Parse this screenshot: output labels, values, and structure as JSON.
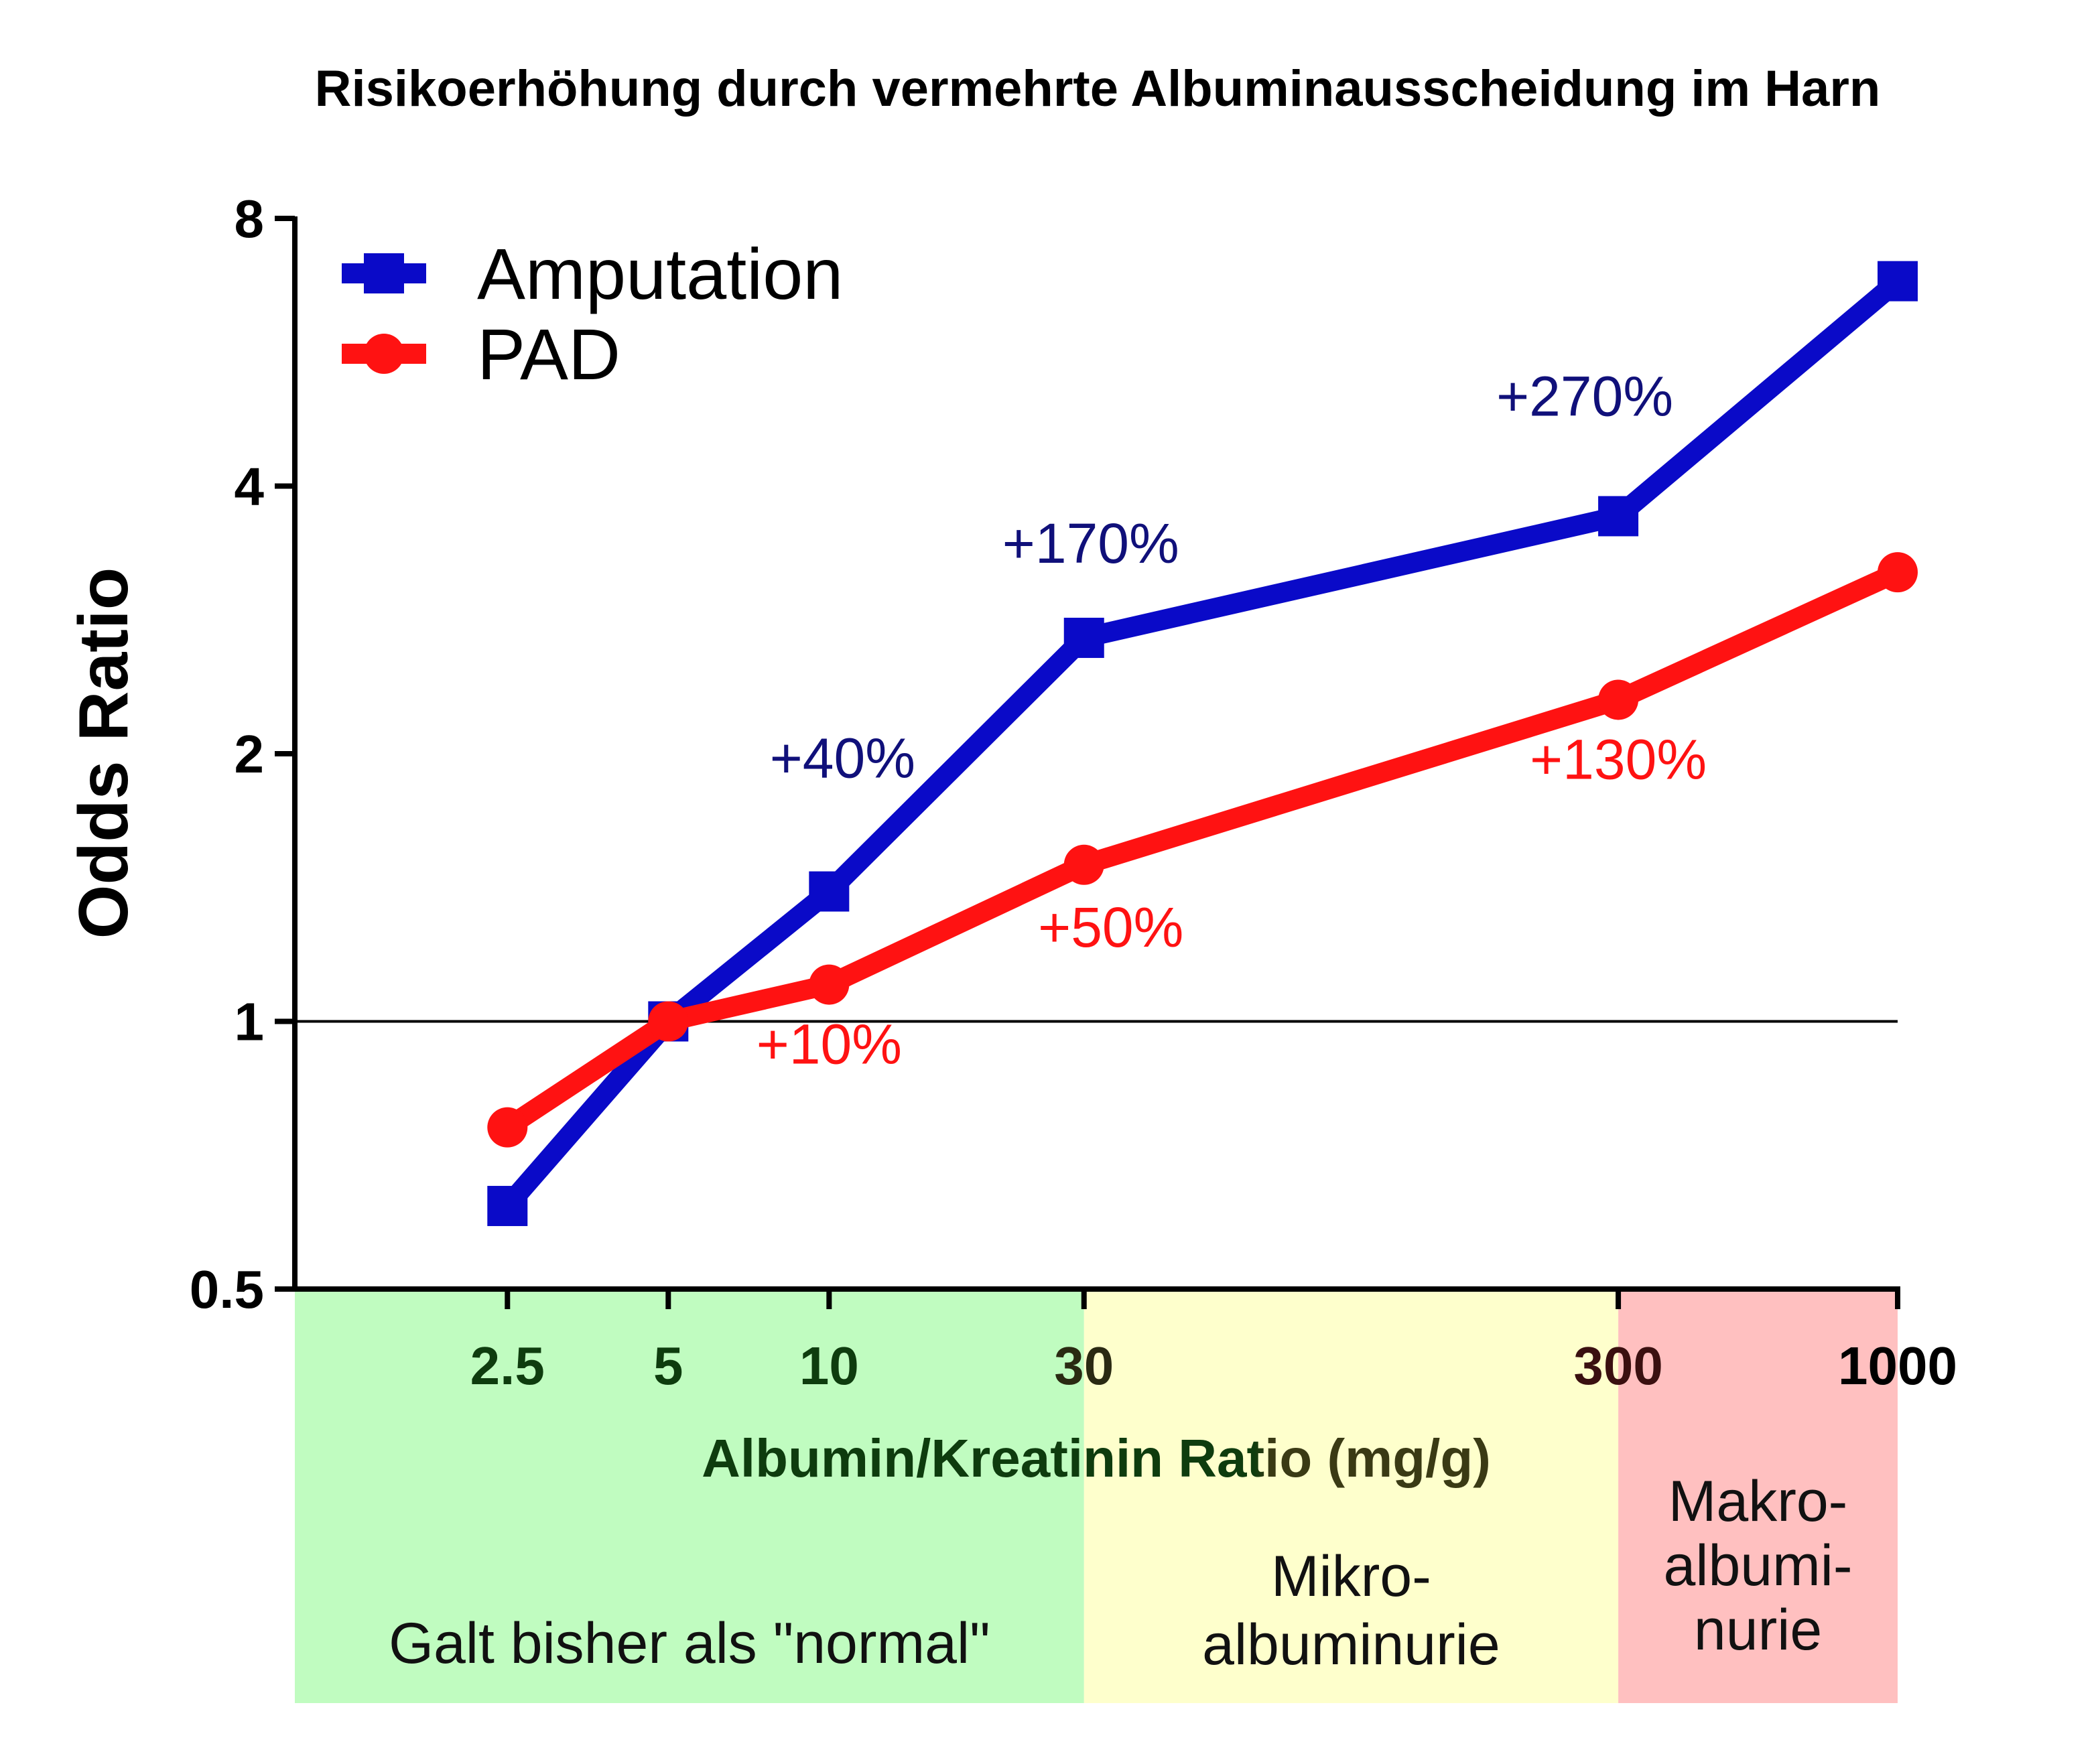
{
  "chart_data": {
    "type": "line",
    "title": "Risikoerhöhung durch vermehrte Albuminausscheidung im Harn",
    "xlabel": "Albumin/Kreatinin Ratio (mg/g)",
    "ylabel": "Odds Ratio",
    "xscale": "log",
    "yscale": "log2",
    "xlim": [
      1,
      1000
    ],
    "ylim": [
      0.5,
      8
    ],
    "yticks": [
      {
        "value": 0.5,
        "label": "0.5"
      },
      {
        "value": 1,
        "label": "1"
      },
      {
        "value": 2,
        "label": "2"
      },
      {
        "value": 4,
        "label": "4"
      },
      {
        "value": 8,
        "label": "8"
      }
    ],
    "xticks": [
      {
        "value": 2.5,
        "label": "2.5"
      },
      {
        "value": 5,
        "label": "5"
      },
      {
        "value": 10,
        "label": "10"
      },
      {
        "value": 30,
        "label": "30"
      },
      {
        "value": 300,
        "label": "300"
      },
      {
        "value": 1000,
        "label": "1000"
      }
    ],
    "reference_line": 1,
    "legend_position": "top-left",
    "series": [
      {
        "name": "Amputation",
        "color": "#0a0ac8",
        "marker": "square",
        "x": [
          2.5,
          5,
          10,
          30,
          300,
          1000
        ],
        "y": [
          0.62,
          1.0,
          1.4,
          2.7,
          3.7,
          6.8
        ]
      },
      {
        "name": "PAD",
        "color": "#ff1212",
        "marker": "circle",
        "x": [
          2.5,
          5,
          10,
          30,
          300,
          1000
        ],
        "y": [
          0.76,
          1.0,
          1.1,
          1.5,
          2.3,
          3.2
        ]
      }
    ],
    "annotations": [
      {
        "text": "+40%",
        "series": "Amputation",
        "x": 10,
        "color": "#10107a"
      },
      {
        "text": "+170%",
        "series": "Amputation",
        "x": 30,
        "color": "#10107a"
      },
      {
        "text": "+270%",
        "series": "Amputation",
        "x": 300,
        "color": "#10107a"
      },
      {
        "text": "+10%",
        "series": "PAD",
        "x": 10,
        "color": "#ff1212"
      },
      {
        "text": "+50%",
        "series": "PAD",
        "x": 30,
        "color": "#ff1212"
      },
      {
        "text": "+130%",
        "series": "PAD",
        "x": 300,
        "color": "#ff1212"
      }
    ],
    "zones": [
      {
        "from": 1,
        "to": 30,
        "color": "#c0fcc0",
        "label_lines": [
          "Galt bisher als \"normal\""
        ]
      },
      {
        "from": 30,
        "to": 300,
        "color": "#feffcc",
        "label_lines": [
          "Mikro-",
          "albuminurie"
        ]
      },
      {
        "from": 300,
        "to": 1000,
        "color": "#ffc0c0",
        "label_lines": [
          "Makro-",
          "albumi-",
          "nurie"
        ]
      }
    ]
  }
}
